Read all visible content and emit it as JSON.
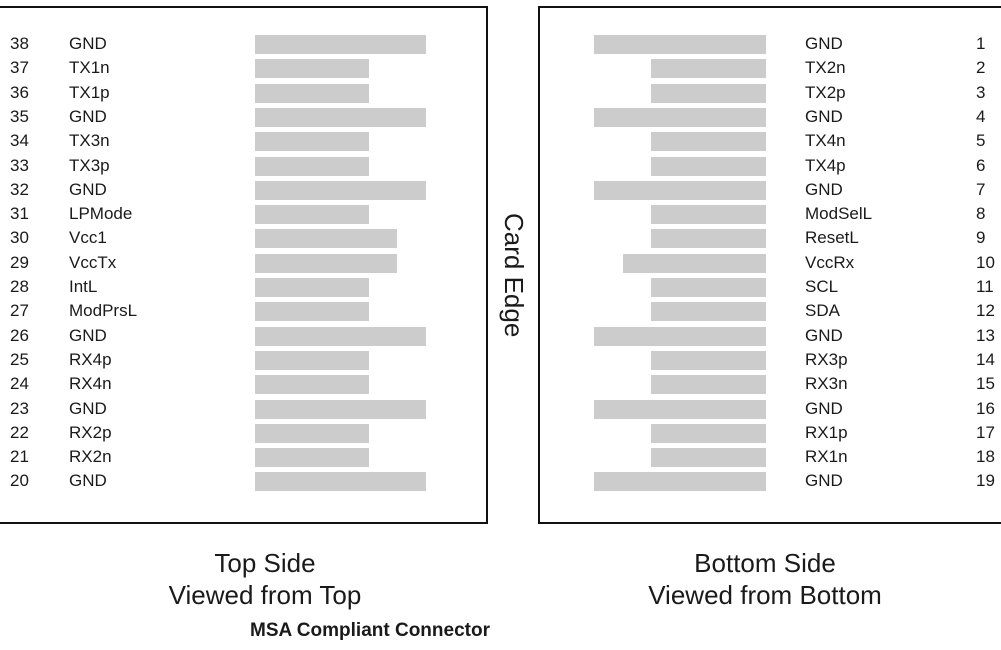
{
  "top_side": {
    "caption_line1": "Top Side",
    "caption_line2": "Viewed from Top",
    "pins": [
      {
        "num": "38",
        "signal": "GND",
        "bar": "long"
      },
      {
        "num": "37",
        "signal": "TX1n",
        "bar": "short"
      },
      {
        "num": "36",
        "signal": "TX1p",
        "bar": "short"
      },
      {
        "num": "35",
        "signal": "GND",
        "bar": "long"
      },
      {
        "num": "34",
        "signal": "TX3n",
        "bar": "short"
      },
      {
        "num": "33",
        "signal": "TX3p",
        "bar": "short"
      },
      {
        "num": "32",
        "signal": "GND",
        "bar": "long"
      },
      {
        "num": "31",
        "signal": "LPMode",
        "bar": "short"
      },
      {
        "num": "30",
        "signal": "Vcc1",
        "bar": "medium"
      },
      {
        "num": "29",
        "signal": "VccTx",
        "bar": "medium"
      },
      {
        "num": "28",
        "signal": "IntL",
        "bar": "short"
      },
      {
        "num": "27",
        "signal": "ModPrsL",
        "bar": "short"
      },
      {
        "num": "26",
        "signal": "GND",
        "bar": "long"
      },
      {
        "num": "25",
        "signal": "RX4p",
        "bar": "short"
      },
      {
        "num": "24",
        "signal": "RX4n",
        "bar": "short"
      },
      {
        "num": "23",
        "signal": "GND",
        "bar": "long"
      },
      {
        "num": "22",
        "signal": "RX2p",
        "bar": "short"
      },
      {
        "num": "21",
        "signal": "RX2n",
        "bar": "short"
      },
      {
        "num": "20",
        "signal": "GND",
        "bar": "long"
      }
    ]
  },
  "bottom_side": {
    "caption_line1": "Bottom Side",
    "caption_line2": "Viewed from Bottom",
    "pins": [
      {
        "num": "1",
        "signal": "GND",
        "bar": "long"
      },
      {
        "num": "2",
        "signal": "TX2n",
        "bar": "short"
      },
      {
        "num": "3",
        "signal": "TX2p",
        "bar": "short"
      },
      {
        "num": "4",
        "signal": "GND",
        "bar": "long"
      },
      {
        "num": "5",
        "signal": "TX4n",
        "bar": "short"
      },
      {
        "num": "6",
        "signal": "TX4p",
        "bar": "short"
      },
      {
        "num": "7",
        "signal": "GND",
        "bar": "long"
      },
      {
        "num": "8",
        "signal": "ModSelL",
        "bar": "short"
      },
      {
        "num": "9",
        "signal": "ResetL",
        "bar": "short"
      },
      {
        "num": "10",
        "signal": "VccRx",
        "bar": "medium"
      },
      {
        "num": "11",
        "signal": "SCL",
        "bar": "short"
      },
      {
        "num": "12",
        "signal": "SDA",
        "bar": "short"
      },
      {
        "num": "13",
        "signal": "GND",
        "bar": "long"
      },
      {
        "num": "14",
        "signal": "RX3p",
        "bar": "short"
      },
      {
        "num": "15",
        "signal": "RX3n",
        "bar": "short"
      },
      {
        "num": "16",
        "signal": "GND",
        "bar": "long"
      },
      {
        "num": "17",
        "signal": "RX1p",
        "bar": "short"
      },
      {
        "num": "18",
        "signal": "RX1n",
        "bar": "short"
      },
      {
        "num": "19",
        "signal": "GND",
        "bar": "long"
      }
    ]
  },
  "card_edge_label": "Card Edge",
  "footer_title": "MSA Compliant Connector",
  "colors": {
    "pad": "#cccccc",
    "frame": "#111111",
    "text": "#1a1a1a"
  }
}
